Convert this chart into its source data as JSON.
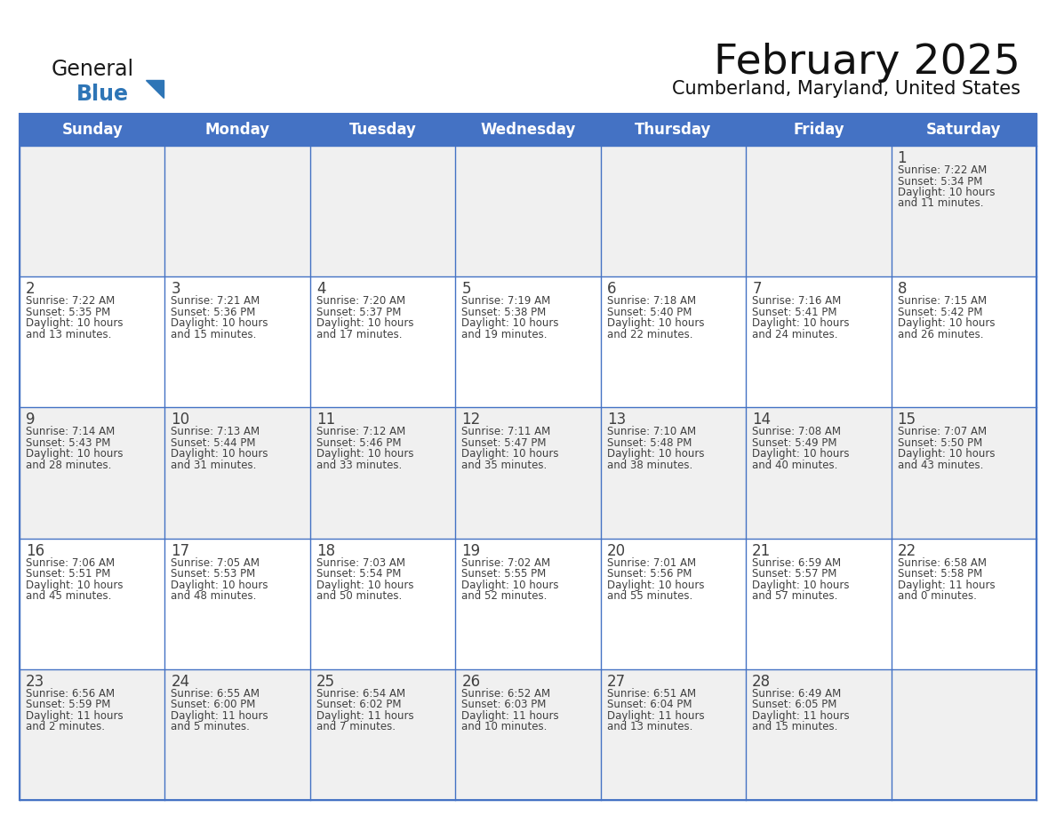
{
  "title": "February 2025",
  "subtitle": "Cumberland, Maryland, United States",
  "days_of_week": [
    "Sunday",
    "Monday",
    "Tuesday",
    "Wednesday",
    "Thursday",
    "Friday",
    "Saturday"
  ],
  "header_bg": "#4472C4",
  "header_text_color": "#FFFFFF",
  "cell_bg_light": "#F0F0F0",
  "cell_bg_white": "#FFFFFF",
  "border_color": "#4472C4",
  "text_color": "#404040",
  "logo_general_color": "#1a1a1a",
  "logo_blue_color": "#2E75B6",
  "calendar_data": [
    [
      null,
      null,
      null,
      null,
      null,
      null,
      {
        "day": 1,
        "sunrise": "7:22 AM",
        "sunset": "5:34 PM",
        "daylight_line1": "Daylight: 10 hours",
        "daylight_line2": "and 11 minutes."
      }
    ],
    [
      {
        "day": 2,
        "sunrise": "7:22 AM",
        "sunset": "5:35 PM",
        "daylight_line1": "Daylight: 10 hours",
        "daylight_line2": "and 13 minutes."
      },
      {
        "day": 3,
        "sunrise": "7:21 AM",
        "sunset": "5:36 PM",
        "daylight_line1": "Daylight: 10 hours",
        "daylight_line2": "and 15 minutes."
      },
      {
        "day": 4,
        "sunrise": "7:20 AM",
        "sunset": "5:37 PM",
        "daylight_line1": "Daylight: 10 hours",
        "daylight_line2": "and 17 minutes."
      },
      {
        "day": 5,
        "sunrise": "7:19 AM",
        "sunset": "5:38 PM",
        "daylight_line1": "Daylight: 10 hours",
        "daylight_line2": "and 19 minutes."
      },
      {
        "day": 6,
        "sunrise": "7:18 AM",
        "sunset": "5:40 PM",
        "daylight_line1": "Daylight: 10 hours",
        "daylight_line2": "and 22 minutes."
      },
      {
        "day": 7,
        "sunrise": "7:16 AM",
        "sunset": "5:41 PM",
        "daylight_line1": "Daylight: 10 hours",
        "daylight_line2": "and 24 minutes."
      },
      {
        "day": 8,
        "sunrise": "7:15 AM",
        "sunset": "5:42 PM",
        "daylight_line1": "Daylight: 10 hours",
        "daylight_line2": "and 26 minutes."
      }
    ],
    [
      {
        "day": 9,
        "sunrise": "7:14 AM",
        "sunset": "5:43 PM",
        "daylight_line1": "Daylight: 10 hours",
        "daylight_line2": "and 28 minutes."
      },
      {
        "day": 10,
        "sunrise": "7:13 AM",
        "sunset": "5:44 PM",
        "daylight_line1": "Daylight: 10 hours",
        "daylight_line2": "and 31 minutes."
      },
      {
        "day": 11,
        "sunrise": "7:12 AM",
        "sunset": "5:46 PM",
        "daylight_line1": "Daylight: 10 hours",
        "daylight_line2": "and 33 minutes."
      },
      {
        "day": 12,
        "sunrise": "7:11 AM",
        "sunset": "5:47 PM",
        "daylight_line1": "Daylight: 10 hours",
        "daylight_line2": "and 35 minutes."
      },
      {
        "day": 13,
        "sunrise": "7:10 AM",
        "sunset": "5:48 PM",
        "daylight_line1": "Daylight: 10 hours",
        "daylight_line2": "and 38 minutes."
      },
      {
        "day": 14,
        "sunrise": "7:08 AM",
        "sunset": "5:49 PM",
        "daylight_line1": "Daylight: 10 hours",
        "daylight_line2": "and 40 minutes."
      },
      {
        "day": 15,
        "sunrise": "7:07 AM",
        "sunset": "5:50 PM",
        "daylight_line1": "Daylight: 10 hours",
        "daylight_line2": "and 43 minutes."
      }
    ],
    [
      {
        "day": 16,
        "sunrise": "7:06 AM",
        "sunset": "5:51 PM",
        "daylight_line1": "Daylight: 10 hours",
        "daylight_line2": "and 45 minutes."
      },
      {
        "day": 17,
        "sunrise": "7:05 AM",
        "sunset": "5:53 PM",
        "daylight_line1": "Daylight: 10 hours",
        "daylight_line2": "and 48 minutes."
      },
      {
        "day": 18,
        "sunrise": "7:03 AM",
        "sunset": "5:54 PM",
        "daylight_line1": "Daylight: 10 hours",
        "daylight_line2": "and 50 minutes."
      },
      {
        "day": 19,
        "sunrise": "7:02 AM",
        "sunset": "5:55 PM",
        "daylight_line1": "Daylight: 10 hours",
        "daylight_line2": "and 52 minutes."
      },
      {
        "day": 20,
        "sunrise": "7:01 AM",
        "sunset": "5:56 PM",
        "daylight_line1": "Daylight: 10 hours",
        "daylight_line2": "and 55 minutes."
      },
      {
        "day": 21,
        "sunrise": "6:59 AM",
        "sunset": "5:57 PM",
        "daylight_line1": "Daylight: 10 hours",
        "daylight_line2": "and 57 minutes."
      },
      {
        "day": 22,
        "sunrise": "6:58 AM",
        "sunset": "5:58 PM",
        "daylight_line1": "Daylight: 11 hours",
        "daylight_line2": "and 0 minutes."
      }
    ],
    [
      {
        "day": 23,
        "sunrise": "6:56 AM",
        "sunset": "5:59 PM",
        "daylight_line1": "Daylight: 11 hours",
        "daylight_line2": "and 2 minutes."
      },
      {
        "day": 24,
        "sunrise": "6:55 AM",
        "sunset": "6:00 PM",
        "daylight_line1": "Daylight: 11 hours",
        "daylight_line2": "and 5 minutes."
      },
      {
        "day": 25,
        "sunrise": "6:54 AM",
        "sunset": "6:02 PM",
        "daylight_line1": "Daylight: 11 hours",
        "daylight_line2": "and 7 minutes."
      },
      {
        "day": 26,
        "sunrise": "6:52 AM",
        "sunset": "6:03 PM",
        "daylight_line1": "Daylight: 11 hours",
        "daylight_line2": "and 10 minutes."
      },
      {
        "day": 27,
        "sunrise": "6:51 AM",
        "sunset": "6:04 PM",
        "daylight_line1": "Daylight: 11 hours",
        "daylight_line2": "and 13 minutes."
      },
      {
        "day": 28,
        "sunrise": "6:49 AM",
        "sunset": "6:05 PM",
        "daylight_line1": "Daylight: 11 hours",
        "daylight_line2": "and 15 minutes."
      },
      null
    ]
  ]
}
